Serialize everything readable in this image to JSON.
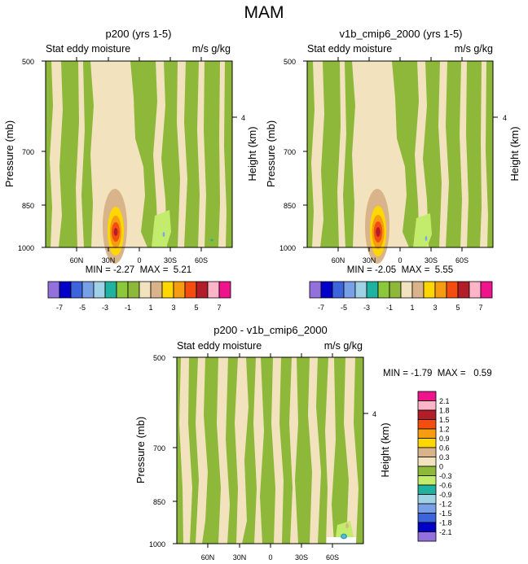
{
  "page_title": "MAM",
  "colors": {
    "green": "#8db83a",
    "cream": "#f2e2bd",
    "tan": "#d9b48a",
    "light_green": "#c4ec6c",
    "yellow": "#ffd700",
    "orange": "#f59c10",
    "red_orange": "#f44d10",
    "dark_red": "#b11e2a",
    "light_blue": "#79a8e8",
    "teal": "#1fb09a"
  },
  "chart_data": [
    {
      "type": "heatmap",
      "id": "panel_a",
      "title": "p200 (yrs 1-5)",
      "left_label": "Stat eddy moisture",
      "right_label": "m/s g/kg",
      "ylabel": "Pressure (mb)",
      "y2label": "Height (km)",
      "yticks": [
        "500",
        "700",
        "850",
        "1000"
      ],
      "y2ticks": [
        "4"
      ],
      "xticks": [
        "60N",
        "30N",
        "0",
        "30S",
        "60S"
      ],
      "stats": "MIN = -2.27  MAX =  5.21",
      "min": -2.27,
      "max": 5.21,
      "peak_value": 5.21,
      "peak_lat": "30N",
      "peak_pressure": 960
    },
    {
      "type": "heatmap",
      "id": "panel_b",
      "title": "v1b_cmip6_2000 (yrs 1-5)",
      "left_label": "Stat eddy moisture",
      "right_label": "m/s g/kg",
      "ylabel": "Pressure (mb)",
      "y2label": "Height (km)",
      "yticks": [
        "500",
        "700",
        "850",
        "1000"
      ],
      "y2ticks": [
        "4"
      ],
      "xticks": [
        "60N",
        "30N",
        "0",
        "30S",
        "60S"
      ],
      "stats": "MIN = -2.05  MAX =  5.55",
      "min": -2.05,
      "max": 5.55,
      "peak_value": 5.55,
      "peak_lat": "30N",
      "peak_pressure": 960
    },
    {
      "type": "heatmap",
      "id": "panel_diff",
      "title": "p200 - v1b_cmip6_2000",
      "left_label": "Stat eddy moisture",
      "right_label": "m/s g/kg",
      "ylabel": "Pressure (mb)",
      "y2label": "Height (km)",
      "yticks": [
        "500",
        "700",
        "850",
        "1000"
      ],
      "y2ticks": [
        "4"
      ],
      "xticks": [
        "60N",
        "30N",
        "0",
        "30S",
        "60S"
      ],
      "stats": "MIN = -1.79  MAX =   0.59",
      "min": -1.79,
      "max": 0.59
    }
  ],
  "shared_colorbar": {
    "labels": [
      "-7",
      "-5",
      "-3",
      "-1",
      "1",
      "3",
      "5",
      "7"
    ],
    "colors": [
      "#9370db",
      "#0000c8",
      "#3c64dc",
      "#78a0e6",
      "#a0d2e6",
      "#20b2a0",
      "#8cc83c",
      "#8db83a",
      "#f2e2bd",
      "#d9b48a",
      "#ffd700",
      "#f59c10",
      "#f44d10",
      "#b11e2a",
      "#ffb4c8",
      "#f0148c"
    ]
  },
  "diff_colorbar": {
    "labels": [
      "2.1",
      "1.8",
      "1.5",
      "1.2",
      "0.9",
      "0.6",
      "0.3",
      "0",
      "-0.3",
      "-0.6",
      "-0.9",
      "-1.2",
      "-1.5",
      "-1.8",
      "-2.1"
    ],
    "colors": [
      "#f0148c",
      "#ffb4c8",
      "#b11e2a",
      "#f44d10",
      "#f59c10",
      "#ffd700",
      "#d9b48a",
      "#f2e2bd",
      "#8db83a",
      "#c4ec6c",
      "#20b2a0",
      "#a0d2e6",
      "#78a0e6",
      "#3c64dc",
      "#0000c8",
      "#9370db"
    ]
  }
}
